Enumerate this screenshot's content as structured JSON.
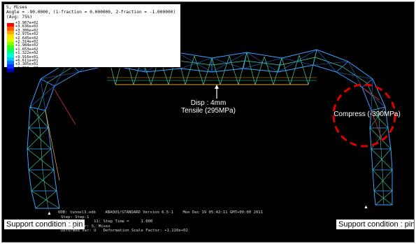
{
  "legend": {
    "title": "S, Mises",
    "angle_line": "Angle = -90.0000, (1-fraction = 0.000000, 2-fraction = -1.000000)",
    "average_line": "(Avg: 75%)",
    "values": [
      "+3.967e+02",
      "+3.636e+02",
      "+3.306e+02",
      "+2.975e+02",
      "+2.645e+02",
      "+2.314e+02",
      "+1.984e+02",
      "+1.653e+02",
      "+1.322e+02",
      "+9.916e+01",
      "+6.611e+01",
      "+3.305e+01",
      "+1.769e-03"
    ],
    "colors": [
      "#ff0000",
      "#ff5a00",
      "#ffaa00",
      "#ffe000",
      "#d8ff00",
      "#90ff00",
      "#30ff20",
      "#00ff80",
      "#00ffd0",
      "#00c8ff",
      "#0078ff",
      "#0030ff",
      "#0000c8"
    ]
  },
  "annotations": {
    "disp_line1": "Disp : 4mm",
    "disp_line2": "Tensile (295MPa)",
    "compress": "Compress (-390MPa)"
  },
  "supports": {
    "left_label": "Support condition : pin",
    "right_label": "Support condition : pin"
  },
  "info": {
    "odb_line": "ODB: tunnel3.odb    ABAQUS/STANDARD Version 6.5-1    Mon Dec 19 05:42:11 GMT+09:00 2011",
    "step_line": "Step: Step-1",
    "increment_line": "Increment     11: Step Time =     1.000",
    "primary_line": "Primary Var: S, Mises",
    "deformed_line": "Deformed Var: U   Deformation Scale Factor: +1.110e+02"
  },
  "colors": {
    "background": "#000000",
    "member_main": "#3aa0ff",
    "member_low": "#2f6fe0",
    "member_mid": "#40d0a0",
    "member_hot": "#e0a020",
    "member_red": "#c83030",
    "marker_circle": "#e00000"
  },
  "icons": {
    "support_marker": "triangle-icon",
    "disp_arrow": "arrow-up-icon"
  }
}
